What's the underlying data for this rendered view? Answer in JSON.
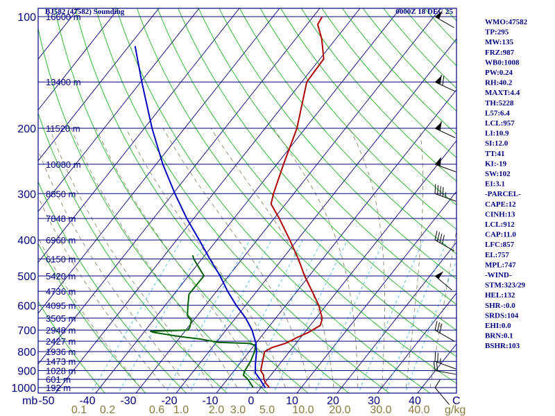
{
  "header": {
    "station": "BJ582 (47582) Sounding",
    "time": "0000Z 18 DEC 25"
  },
  "colors": {
    "frame": "#000080",
    "isobar": "#000080",
    "isotherm": "#000080",
    "dry_adiabat": "#00aa00",
    "moist_adiabat": "#7a7a5a",
    "mixing_ratio": "#40c0e0",
    "temperature": "#b00000",
    "dewpoint": "#006000",
    "parcel": "#0000c0",
    "wind": "#000000"
  },
  "axis_labels": {
    "mb_unit": "mb",
    "mixing_unit": "g/kg",
    "c_unit": "C"
  },
  "chart_data": {
    "type": "line",
    "title": "BJ582 (47582) Sounding",
    "subtitle": "0000Z 18 DEC 25",
    "pressure_levels": [
      100,
      200,
      300,
      400,
      500,
      600,
      700,
      800,
      900,
      1000
    ],
    "pressure_range": [
      100,
      1050
    ],
    "temperature_ticks": [
      -50,
      -40,
      -30,
      -20,
      -10,
      0,
      10,
      20,
      30,
      40
    ],
    "temperature_tick_labels": [
      "-50",
      "-40",
      "-30",
      "-20",
      "-10",
      "0",
      "10",
      "20",
      "30",
      "40"
    ],
    "mixing_ratio_labels": [
      "0.1",
      "0.2",
      "0.6",
      "1.0",
      "2.0",
      "3.0",
      "5.0",
      "10.0",
      "20.0",
      "30.0",
      "40.0"
    ],
    "heights": [
      {
        "label": "16600 m",
        "p": 100
      },
      {
        "label": "13400 m",
        "p": 150
      },
      {
        "label": "11520 m",
        "p": 200
      },
      {
        "label": "10080 m",
        "p": 250
      },
      {
        "label": "8850 m",
        "p": 300
      },
      {
        "label": "7848 m",
        "p": 350
      },
      {
        "label": "6960 m",
        "p": 400
      },
      {
        "label": "6150 m",
        "p": 450
      },
      {
        "label": "5420 m",
        "p": 500
      },
      {
        "label": "4736 m",
        "p": 550
      },
      {
        "label": "4095 m",
        "p": 600
      },
      {
        "label": "3505 m",
        "p": 650
      },
      {
        "label": "2948 m",
        "p": 700
      },
      {
        "label": "2427 m",
        "p": 750
      },
      {
        "label": "1936 m",
        "p": 800
      },
      {
        "label": "1473 m",
        "p": 850
      },
      {
        "label": "1028 m",
        "p": 900
      },
      {
        "label": "601 m",
        "p": 950
      },
      {
        "label": "192 m",
        "p": 1000
      }
    ],
    "series": [
      {
        "key": "temperature",
        "points": [
          [
            1000,
            2.0
          ],
          [
            970,
            0.0
          ],
          [
            950,
            -1.0
          ],
          [
            925,
            -2.0
          ],
          [
            900,
            -3.6
          ],
          [
            850,
            -5.0
          ],
          [
            800,
            -6.5
          ],
          [
            780,
            -5.5
          ],
          [
            760,
            -3.0
          ],
          [
            745,
            -2.0
          ],
          [
            735,
            -1.5
          ],
          [
            710,
            0.5
          ],
          [
            700,
            1.0
          ],
          [
            680,
            2.0
          ],
          [
            660,
            1.4
          ],
          [
            650,
            1.0
          ],
          [
            600,
            -2.5
          ],
          [
            550,
            -7.0
          ],
          [
            500,
            -12.0
          ],
          [
            450,
            -17.0
          ],
          [
            400,
            -23.0
          ],
          [
            350,
            -30.0
          ],
          [
            320,
            -35.0
          ],
          [
            300,
            -36.5
          ],
          [
            250,
            -40.0
          ],
          [
            200,
            -44.0
          ],
          [
            150,
            -51.0
          ],
          [
            130,
            -51.5
          ],
          [
            115,
            -56.0
          ],
          [
            105,
            -60.0
          ],
          [
            100,
            -60.5
          ]
        ]
      },
      {
        "key": "dewpoint",
        "points": [
          [
            1000,
            -2.0
          ],
          [
            950,
            -5.0
          ],
          [
            925,
            -7.0
          ],
          [
            900,
            -7.5
          ],
          [
            850,
            -8.0
          ],
          [
            800,
            -9.0
          ],
          [
            770,
            -10.0
          ],
          [
            760,
            -12.0
          ],
          [
            755,
            -20.0
          ],
          [
            740,
            -25.0
          ],
          [
            730,
            -30.0
          ],
          [
            710,
            -38.0
          ],
          [
            705,
            -39.0
          ],
          [
            700,
            -30.0
          ],
          [
            690,
            -30.0
          ],
          [
            660,
            -31.0
          ],
          [
            640,
            -33.0
          ],
          [
            600,
            -35.0
          ],
          [
            560,
            -37.0
          ],
          [
            500,
            -37.0
          ],
          [
            450,
            -43.0
          ],
          [
            440,
            -44.0
          ]
        ]
      },
      {
        "key": "parcel",
        "points": [
          [
            1000,
            1.0
          ],
          [
            950,
            -2.0
          ],
          [
            912,
            -4.5
          ],
          [
            857,
            -6.5
          ],
          [
            800,
            -8.5
          ],
          [
            757,
            -10.5
          ],
          [
            700,
            -14.0
          ],
          [
            650,
            -18.0
          ],
          [
            600,
            -23.0
          ],
          [
            550,
            -28.0
          ],
          [
            500,
            -33.0
          ],
          [
            450,
            -39.0
          ],
          [
            400,
            -45.5
          ],
          [
            350,
            -53.0
          ],
          [
            300,
            -61.0
          ],
          [
            250,
            -70.0
          ],
          [
            200,
            -80.0
          ],
          [
            150,
            -92.0
          ],
          [
            120,
            -101.0
          ]
        ]
      }
    ],
    "wind_barbs": [
      {
        "p": 100,
        "dir": 300,
        "spd": 50
      },
      {
        "p": 150,
        "dir": 295,
        "spd": 70
      },
      {
        "p": 200,
        "dir": 295,
        "spd": 60
      },
      {
        "p": 250,
        "dir": 290,
        "spd": 55
      },
      {
        "p": 300,
        "dir": 290,
        "spd": 45
      },
      {
        "p": 400,
        "dir": 300,
        "spd": 40
      },
      {
        "p": 500,
        "dir": 310,
        "spd": 50
      },
      {
        "p": 700,
        "dir": 300,
        "spd": 30
      },
      {
        "p": 850,
        "dir": 290,
        "spd": 25
      },
      {
        "p": 900,
        "dir": 280,
        "spd": 20
      },
      {
        "p": 1000,
        "dir": 320,
        "spd": 10
      }
    ]
  },
  "indices": [
    "WMO:47582",
    "TP:295",
    "MW:135",
    "FRZ:987",
    "WB0:1008",
    "PW:0.24",
    "RH:40.2",
    "MAXT:4.4",
    "TH:5228",
    "L57:6.4",
    "LCL:957",
    "LI:10.9",
    "SI:12.0",
    "TT:41",
    "KI:-19",
    "SW:102",
    "EI:3.1",
    "-PARCEL-",
    "CAPE:12",
    "CINH:13",
    "LCL:912",
    "CAP:11.0",
    "LFC:857",
    "EL:757",
    "MPL:747",
    "-WIND-",
    "STM:323/29",
    "HEL:132",
    "SHR-:0.0",
    "SRDS:104",
    "EHI:0.0",
    "BRN:0.1",
    "BSHR:103"
  ]
}
